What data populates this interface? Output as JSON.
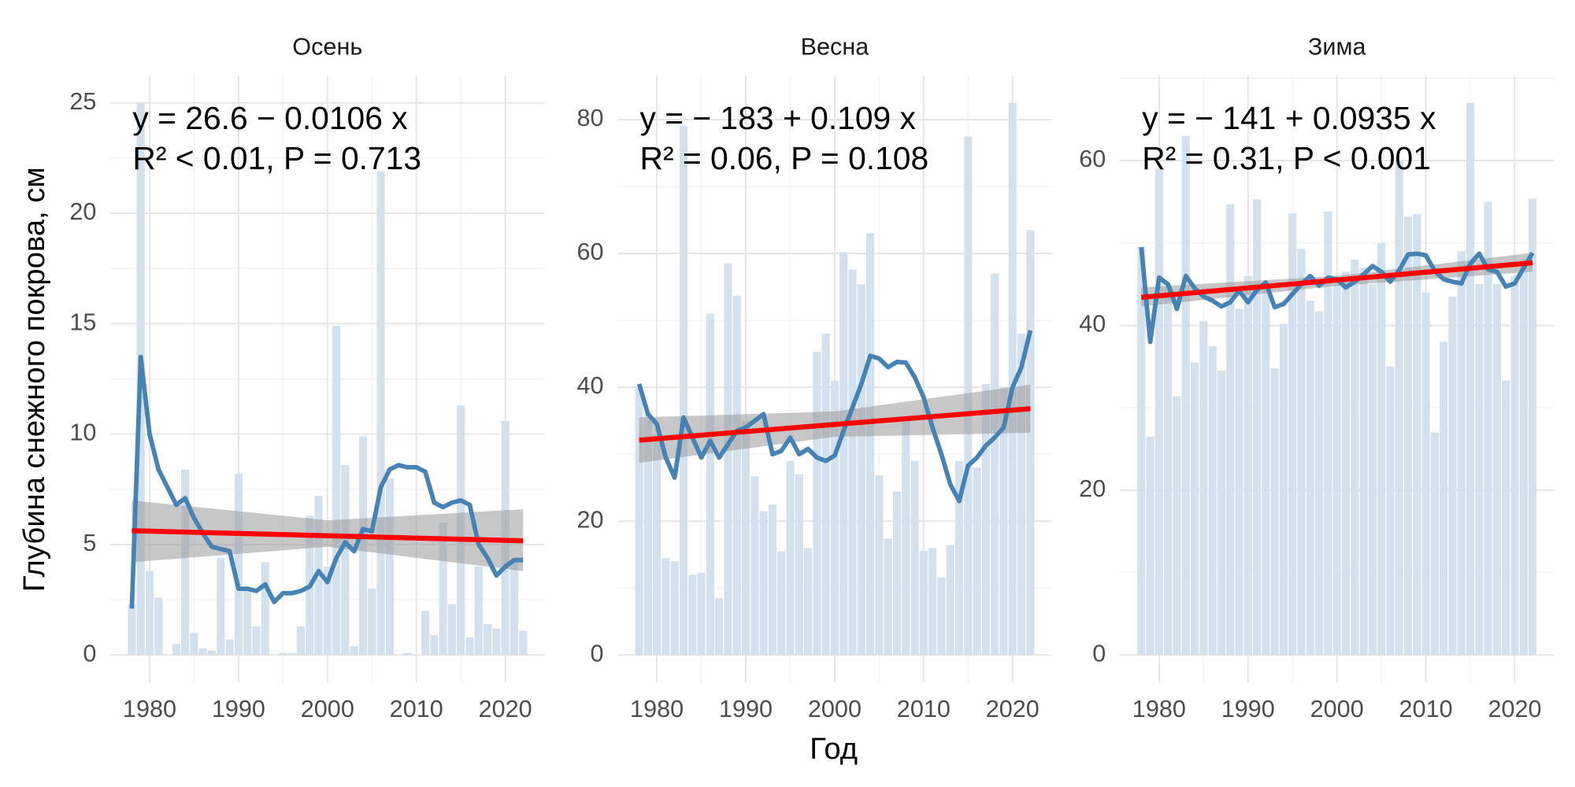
{
  "axis_labels": {
    "x": "Год",
    "y": "Глубина снежного покрова, см"
  },
  "chart_data": [
    {
      "type": "bar",
      "title": "Осень",
      "x": [
        1978,
        1979,
        1980,
        1981,
        1982,
        1983,
        1984,
        1985,
        1986,
        1987,
        1988,
        1989,
        1990,
        1991,
        1992,
        1993,
        1994,
        1995,
        1996,
        1997,
        1998,
        1999,
        2000,
        2001,
        2002,
        2003,
        2004,
        2005,
        2006,
        2007,
        2008,
        2009,
        2010,
        2011,
        2012,
        2013,
        2014,
        2015,
        2016,
        2017,
        2018,
        2019,
        2020,
        2021,
        2022
      ],
      "xlim": [
        1975.6,
        2024.4
      ],
      "xticks": [
        1980,
        1990,
        2000,
        2010,
        2020
      ],
      "ylim": [
        -1.25,
        26.25
      ],
      "yticks": [
        0,
        5,
        10,
        15,
        20,
        25
      ],
      "grid": true,
      "bar_color": "#d3e1ee",
      "values": [
        2.3,
        25,
        3.8,
        2.6,
        0,
        0.5,
        8.4,
        1.0,
        0.3,
        0.2,
        4.4,
        0.7,
        8.2,
        3.0,
        1.3,
        4.2,
        0,
        0.1,
        0.1,
        1.3,
        6.3,
        7.2,
        4.0,
        14.9,
        8.6,
        0.4,
        9.9,
        3.0,
        21.9,
        8.0,
        0,
        0.1,
        0,
        2.0,
        0.9,
        6.0,
        2.3,
        11.3,
        0.8,
        4.0,
        1.4,
        1.2,
        10.6,
        4.3,
        1.1
      ],
      "smooth": {
        "color": "#4682b4",
        "values": [
          2.1,
          13.5,
          10,
          8.4,
          7.6,
          6.8,
          7.1,
          6.2,
          5.5,
          4.9,
          4.8,
          4.7,
          3.0,
          3.0,
          2.9,
          3.2,
          2.4,
          2.8,
          2.8,
          2.9,
          3.1,
          3.8,
          3.3,
          4.4,
          5.1,
          4.7,
          5.7,
          5.6,
          7.6,
          8.4,
          8.6,
          8.5,
          8.5,
          8.3,
          6.9,
          6.7,
          6.9,
          7.0,
          6.8,
          5.0,
          4.4,
          3.6,
          4.0,
          4.3,
          4.3
        ]
      },
      "fit": {
        "color": "#ff0000",
        "x": [
          1978,
          2022
        ],
        "values": [
          5.63,
          5.17
        ]
      },
      "band": {
        "color": "#999999",
        "x": [
          1978,
          2000,
          2022
        ],
        "lower": [
          4.2,
          4.9,
          3.8
        ],
        "upper": [
          7.0,
          6.1,
          6.6
        ]
      },
      "equation": "y = 26.6 − 0.0106 x",
      "stats": "R² < 0.01, P = 0.713"
    },
    {
      "type": "bar",
      "title": "Весна",
      "x": [
        1978,
        1979,
        1980,
        1981,
        1982,
        1983,
        1984,
        1985,
        1986,
        1987,
        1988,
        1989,
        1990,
        1991,
        1992,
        1993,
        1994,
        1995,
        1996,
        1997,
        1998,
        1999,
        2000,
        2001,
        2002,
        2003,
        2004,
        2005,
        2006,
        2007,
        2008,
        2009,
        2010,
        2011,
        2012,
        2013,
        2014,
        2015,
        2016,
        2017,
        2018,
        2019,
        2020,
        2021,
        2022
      ],
      "xlim": [
        1975.6,
        2024.4
      ],
      "xticks": [
        1980,
        1990,
        2000,
        2010,
        2020
      ],
      "ylim": [
        -4.125,
        86.625
      ],
      "yticks": [
        0,
        20,
        40,
        60,
        80
      ],
      "grid": true,
      "bar_color": "#d3e1ee",
      "values": [
        40,
        36,
        33,
        14.5,
        14,
        79,
        12,
        12.3,
        51,
        8.5,
        58.5,
        53.7,
        35,
        26.7,
        21.5,
        22.5,
        15.5,
        29,
        27,
        16,
        45.3,
        48,
        41,
        60.2,
        57.6,
        55.4,
        63,
        26.8,
        17.4,
        24.4,
        35,
        29,
        15.6,
        16,
        11.6,
        16.4,
        29,
        77.5,
        28,
        40.5,
        57,
        40,
        82.5,
        48,
        63.5
      ],
      "smooth": {
        "color": "#4682b4",
        "values": [
          40.5,
          36,
          34.5,
          29.5,
          26.5,
          35.5,
          32.5,
          29.5,
          32,
          29.5,
          31.5,
          33.5,
          34,
          35,
          36,
          30,
          30.5,
          32.5,
          30,
          30.8,
          29.5,
          29,
          29.8,
          33.5,
          37,
          40.5,
          44.7,
          44.3,
          43,
          43.8,
          43.7,
          41.5,
          38.5,
          34,
          30,
          25.5,
          23,
          28.3,
          29.5,
          31.3,
          32.5,
          34,
          40,
          43,
          48.5
        ]
      },
      "fit": {
        "color": "#ff0000",
        "x": [
          1978,
          2022
        ],
        "values": [
          32.1,
          36.8
        ]
      },
      "band": {
        "color": "#999999",
        "x": [
          1978,
          2000,
          2022
        ],
        "lower": [
          28.7,
          32.6,
          33.2
        ],
        "upper": [
          35.5,
          36.4,
          40.4
        ]
      },
      "equation": "y = − 183 + 0.109 x",
      "stats": "R² = 0.06, P = 0.108"
    },
    {
      "type": "bar",
      "title": "Зима",
      "x": [
        1978,
        1979,
        1980,
        1981,
        1982,
        1983,
        1984,
        1985,
        1986,
        1987,
        1988,
        1989,
        1990,
        1991,
        1992,
        1993,
        1994,
        1995,
        1996,
        1997,
        1998,
        1999,
        2000,
        2001,
        2002,
        2003,
        2004,
        2005,
        2006,
        2007,
        2008,
        2009,
        2010,
        2011,
        2012,
        2013,
        2014,
        2015,
        2016,
        2017,
        2018,
        2019,
        2020,
        2021,
        2022
      ],
      "xlim": [
        1975.6,
        2024.4
      ],
      "xticks": [
        1980,
        1990,
        2000,
        2010,
        2020
      ],
      "ylim": [
        -3.35,
        70.35
      ],
      "yticks": [
        0,
        20,
        40,
        60
      ],
      "grid": true,
      "bar_color": "#d3e1ee",
      "values": [
        49.5,
        26.5,
        59,
        45,
        31.4,
        63,
        35.5,
        40.5,
        37.5,
        34.5,
        54.7,
        42,
        46,
        55.3,
        45,
        34.8,
        40.2,
        53.6,
        49.3,
        43,
        41.7,
        53.8,
        45,
        46.5,
        48,
        47,
        45,
        50,
        35,
        60,
        53.2,
        53.5,
        44,
        27,
        38,
        43.5,
        49,
        67,
        45,
        55,
        45,
        33.3,
        46,
        48,
        55.4
      ],
      "smooth": {
        "color": "#4682b4",
        "values": [
          49.5,
          38,
          45.8,
          45,
          42,
          46,
          44.5,
          43.5,
          43,
          42.3,
          42.8,
          44.2,
          42.8,
          44.3,
          45.2,
          42.2,
          42.6,
          43.8,
          45,
          46,
          44.8,
          45.8,
          45.6,
          44.6,
          45.3,
          46.2,
          47.2,
          46.5,
          45.3,
          46.7,
          48.6,
          48.7,
          48.5,
          46.6,
          45.6,
          45.3,
          45.1,
          47.5,
          48.7,
          46.8,
          46.5,
          44.7,
          45.1,
          47,
          48.8
        ]
      },
      "fit": {
        "color": "#ff0000",
        "x": [
          1978,
          2022
        ],
        "values": [
          43.4,
          47.6
        ]
      },
      "band": {
        "color": "#999999",
        "x": [
          1978,
          2000,
          2022
        ],
        "lower": [
          42.3,
          44.8,
          46.5
        ],
        "upper": [
          44.6,
          46.0,
          48.8
        ]
      },
      "equation": "y = − 141 + 0.0935 x",
      "stats": "R² = 0.31, P < 0.001"
    }
  ]
}
